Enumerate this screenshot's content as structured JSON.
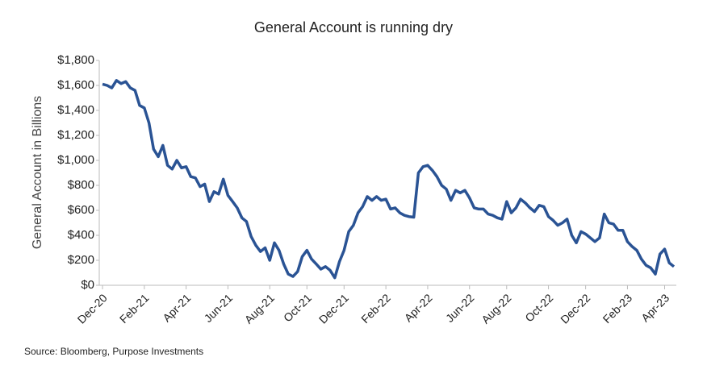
{
  "chart_data": {
    "type": "line",
    "title": "General Account is running dry",
    "y_label": "General Account in Billions",
    "source": "Source: Bloomberg, Purpose Investments",
    "categories": [
      "Dec-20",
      null,
      null,
      null,
      null,
      null,
      null,
      null,
      null,
      "Feb-21",
      null,
      null,
      null,
      null,
      null,
      null,
      null,
      null,
      "Apr-21",
      null,
      null,
      null,
      null,
      null,
      null,
      null,
      null,
      "Jun-21",
      null,
      null,
      null,
      null,
      null,
      null,
      null,
      null,
      "Aug-21",
      null,
      null,
      null,
      null,
      null,
      null,
      null,
      "Oct-21",
      null,
      null,
      null,
      null,
      null,
      null,
      null,
      "Dec-21",
      null,
      null,
      null,
      null,
      null,
      null,
      null,
      null,
      "Feb-22",
      null,
      null,
      null,
      null,
      null,
      null,
      null,
      null,
      "Apr-22",
      null,
      null,
      null,
      null,
      null,
      null,
      null,
      null,
      "Jun-22",
      null,
      null,
      null,
      null,
      null,
      null,
      null,
      "Aug-22",
      null,
      null,
      null,
      null,
      null,
      null,
      null,
      null,
      "Oct-22",
      null,
      null,
      null,
      null,
      null,
      null,
      null,
      "Dec-22",
      null,
      null,
      null,
      null,
      null,
      null,
      null,
      null,
      "Feb-23",
      null,
      null,
      null,
      null,
      null,
      null,
      null,
      "Apr-23",
      null,
      null
    ],
    "series": [
      {
        "color": "#2a5394",
        "values": [
          1610,
          1600,
          1580,
          1640,
          1615,
          1630,
          1580,
          1560,
          1440,
          1420,
          1300,
          1090,
          1030,
          1120,
          960,
          930,
          1000,
          940,
          950,
          870,
          860,
          790,
          810,
          670,
          750,
          730,
          850,
          720,
          670,
          620,
          540,
          510,
          390,
          320,
          270,
          300,
          200,
          340,
          280,
          170,
          90,
          70,
          110,
          230,
          280,
          210,
          170,
          130,
          150,
          120,
          60,
          190,
          280,
          430,
          480,
          580,
          630,
          710,
          680,
          710,
          680,
          690,
          610,
          620,
          580,
          560,
          550,
          545,
          900,
          950,
          960,
          920,
          870,
          800,
          770,
          680,
          760,
          740,
          760,
          700,
          620,
          610,
          610,
          570,
          560,
          540,
          530,
          670,
          580,
          620,
          690,
          660,
          620,
          590,
          640,
          630,
          550,
          520,
          480,
          500,
          530,
          400,
          340,
          430,
          410,
          380,
          350,
          380,
          570,
          500,
          490,
          440,
          440,
          350,
          310,
          280,
          210,
          160,
          140,
          90,
          250,
          290,
          180,
          150
        ]
      }
    ],
    "ylim": [
      0,
      1800
    ],
    "yticks": [
      {
        "value": 0,
        "label": "$0"
      },
      {
        "value": 200,
        "label": "$200"
      },
      {
        "value": 400,
        "label": "$400"
      },
      {
        "value": 600,
        "label": "$600"
      },
      {
        "value": 800,
        "label": "$800"
      },
      {
        "value": 1000,
        "label": "$1,000"
      },
      {
        "value": 1200,
        "label": "$1,200"
      },
      {
        "value": 1400,
        "label": "$1,400"
      },
      {
        "value": 1600,
        "label": "$1,600"
      },
      {
        "value": 1800,
        "label": "$1,800"
      }
    ],
    "grid": false
  }
}
